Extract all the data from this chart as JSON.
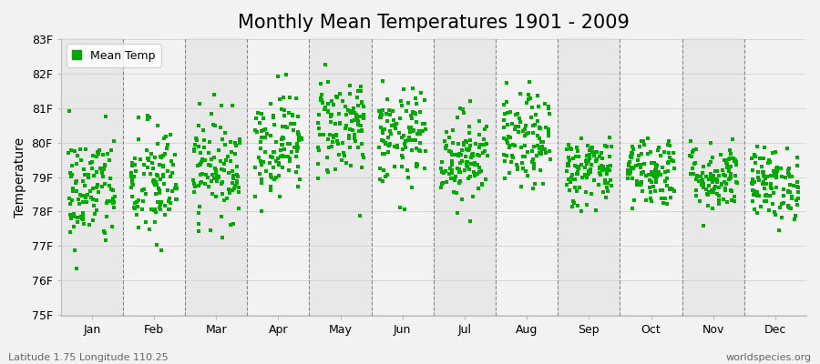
{
  "title": "Monthly Mean Temperatures 1901 - 2009",
  "ylabel": "Temperature",
  "ylim": [
    75,
    83
  ],
  "yticks": [
    75,
    76,
    77,
    78,
    79,
    80,
    81,
    82,
    83
  ],
  "ytick_labels": [
    "75F",
    "76F",
    "77F",
    "78F",
    "79F",
    "80F",
    "81F",
    "82F",
    "83F"
  ],
  "months": [
    "Jan",
    "Feb",
    "Mar",
    "Apr",
    "May",
    "Jun",
    "Jul",
    "Aug",
    "Sep",
    "Oct",
    "Nov",
    "Dec"
  ],
  "month_means": [
    78.6,
    78.8,
    79.3,
    80.0,
    80.5,
    80.1,
    79.6,
    80.0,
    79.2,
    79.2,
    79.0,
    78.8
  ],
  "month_stds": [
    0.85,
    0.9,
    0.75,
    0.75,
    0.75,
    0.7,
    0.65,
    0.68,
    0.52,
    0.52,
    0.5,
    0.52
  ],
  "n_years": 109,
  "marker_color": "#00aa00",
  "marker": "s",
  "marker_size": 2.5,
  "legend_label": "Mean Temp",
  "bg_color": "#f2f2f2",
  "col_bg_even": "#e8e8e8",
  "col_bg_odd": "#f2f2f2",
  "grid_color": "#888888",
  "subtitle_left": "Latitude 1.75 Longitude 110.25",
  "subtitle_right": "worldspecies.org",
  "title_fontsize": 15,
  "axis_fontsize": 10,
  "tick_fontsize": 9,
  "subtitle_fontsize": 8
}
